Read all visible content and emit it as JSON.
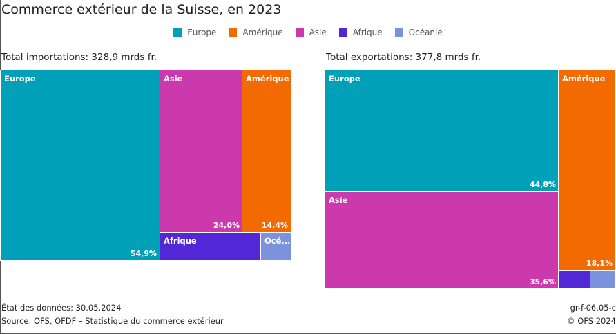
{
  "title": "Commerce extérieur de la Suisse, en 2023",
  "legend": [
    {
      "name": "Europe",
      "color": "#00a0b8"
    },
    {
      "name": "Amérique",
      "color": "#f26a00"
    },
    {
      "name": "Asie",
      "color": "#cc39ad"
    },
    {
      "name": "Afrique",
      "color": "#5127d6"
    },
    {
      "name": "Océanie",
      "color": "#7b93dc"
    }
  ],
  "chart_data": [
    {
      "type": "treemap",
      "title": "Total importations: 328,9 mrds fr.",
      "tiles": [
        {
          "name": "Europe",
          "label": "Europe",
          "value": 54.9,
          "pct_label": "54,9%",
          "color": "#00a0b8"
        },
        {
          "name": "Asie",
          "label": "Asie",
          "value": 24.0,
          "pct_label": "24,0%",
          "color": "#cc39ad"
        },
        {
          "name": "Amérique",
          "label": "Amérique",
          "value": 14.4,
          "pct_label": "14,4%",
          "color": "#f26a00"
        },
        {
          "name": "Afrique",
          "label": "Afrique",
          "value": 4.6,
          "pct_label": "",
          "color": "#5127d6"
        },
        {
          "name": "Océanie",
          "label": "Océ...",
          "value": 2.1,
          "pct_label": "",
          "color": "#7b93dc"
        }
      ]
    },
    {
      "type": "treemap",
      "title": "Total exportations: 377,8 mrds fr.",
      "tiles": [
        {
          "name": "Europe",
          "label": "Europe",
          "value": 44.8,
          "pct_label": "44,8%",
          "color": "#00a0b8"
        },
        {
          "name": "Asie",
          "label": "Asie",
          "value": 35.6,
          "pct_label": "35,6%",
          "color": "#cc39ad"
        },
        {
          "name": "Amérique",
          "label": "Amérique",
          "value": 18.1,
          "pct_label": "18,1%",
          "color": "#f26a00"
        },
        {
          "name": "Afrique",
          "label": "",
          "value": 0.8,
          "pct_label": "",
          "color": "#5127d6"
        },
        {
          "name": "Océanie",
          "label": "",
          "value": 0.7,
          "pct_label": "",
          "color": "#7b93dc"
        }
      ]
    }
  ],
  "footer": {
    "date": "État des données: 30.05.2024",
    "source": "Source: OFS, OFDF – Statistique du commerce extérieur",
    "code": "gr-f-06.05-c",
    "copyright": "© OFS 2024"
  }
}
